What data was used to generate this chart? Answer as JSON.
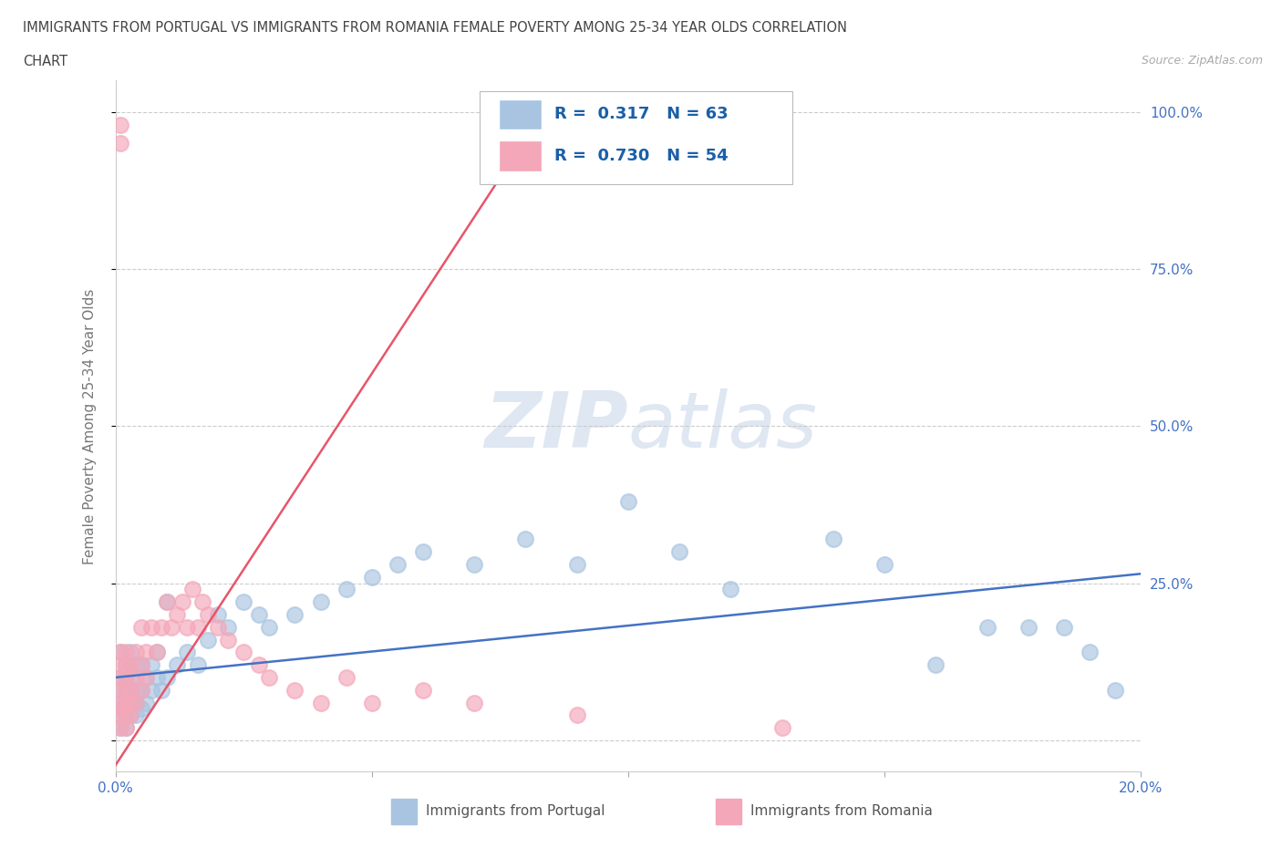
{
  "title_line1": "IMMIGRANTS FROM PORTUGAL VS IMMIGRANTS FROM ROMANIA FEMALE POVERTY AMONG 25-34 YEAR OLDS CORRELATION",
  "title_line2": "CHART",
  "source": "Source: ZipAtlas.com",
  "ylabel": "Female Poverty Among 25-34 Year Olds",
  "color_portugal": "#a8c4e0",
  "color_romania": "#f4a7b9",
  "trendline_portugal": "#4472c4",
  "trendline_romania": "#e8556a",
  "R_portugal": 0.317,
  "N_portugal": 63,
  "R_romania": 0.73,
  "N_romania": 54,
  "xlim": [
    0.0,
    0.2
  ],
  "ylim": [
    -0.05,
    1.05
  ],
  "xtick_positions": [
    0.0,
    0.05,
    0.1,
    0.15,
    0.2
  ],
  "ytick_positions": [
    0.0,
    0.25,
    0.5,
    0.75,
    1.0
  ],
  "portugal_x": [
    0.001,
    0.001,
    0.001,
    0.001,
    0.001,
    0.001,
    0.002,
    0.002,
    0.002,
    0.002,
    0.002,
    0.002,
    0.002,
    0.003,
    0.003,
    0.003,
    0.003,
    0.003,
    0.004,
    0.004,
    0.004,
    0.004,
    0.005,
    0.005,
    0.005,
    0.006,
    0.006,
    0.007,
    0.007,
    0.008,
    0.008,
    0.009,
    0.01,
    0.01,
    0.012,
    0.014,
    0.016,
    0.018,
    0.02,
    0.022,
    0.025,
    0.028,
    0.03,
    0.035,
    0.04,
    0.045,
    0.05,
    0.055,
    0.06,
    0.07,
    0.08,
    0.09,
    0.1,
    0.11,
    0.12,
    0.14,
    0.15,
    0.16,
    0.17,
    0.178,
    0.185,
    0.19,
    0.195
  ],
  "portugal_y": [
    0.02,
    0.04,
    0.06,
    0.08,
    0.1,
    0.14,
    0.02,
    0.04,
    0.06,
    0.07,
    0.08,
    0.1,
    0.12,
    0.04,
    0.06,
    0.08,
    0.1,
    0.14,
    0.04,
    0.06,
    0.08,
    0.12,
    0.05,
    0.08,
    0.12,
    0.06,
    0.1,
    0.08,
    0.12,
    0.1,
    0.14,
    0.08,
    0.1,
    0.22,
    0.12,
    0.14,
    0.12,
    0.16,
    0.2,
    0.18,
    0.22,
    0.2,
    0.18,
    0.2,
    0.22,
    0.24,
    0.26,
    0.28,
    0.3,
    0.28,
    0.32,
    0.28,
    0.38,
    0.3,
    0.24,
    0.32,
    0.28,
    0.12,
    0.18,
    0.18,
    0.18,
    0.14,
    0.08
  ],
  "romania_x": [
    0.001,
    0.001,
    0.001,
    0.001,
    0.001,
    0.001,
    0.001,
    0.001,
    0.001,
    0.001,
    0.002,
    0.002,
    0.002,
    0.002,
    0.002,
    0.002,
    0.002,
    0.003,
    0.003,
    0.003,
    0.003,
    0.004,
    0.004,
    0.004,
    0.005,
    0.005,
    0.005,
    0.006,
    0.006,
    0.007,
    0.008,
    0.009,
    0.01,
    0.011,
    0.012,
    0.013,
    0.014,
    0.015,
    0.016,
    0.017,
    0.018,
    0.02,
    0.022,
    0.025,
    0.028,
    0.03,
    0.035,
    0.04,
    0.045,
    0.05,
    0.06,
    0.07,
    0.09,
    0.13
  ],
  "romania_y": [
    0.02,
    0.04,
    0.05,
    0.06,
    0.08,
    0.1,
    0.12,
    0.14,
    0.95,
    0.98,
    0.02,
    0.04,
    0.06,
    0.08,
    0.1,
    0.12,
    0.14,
    0.04,
    0.06,
    0.08,
    0.12,
    0.06,
    0.1,
    0.14,
    0.08,
    0.12,
    0.18,
    0.1,
    0.14,
    0.18,
    0.14,
    0.18,
    0.22,
    0.18,
    0.2,
    0.22,
    0.18,
    0.24,
    0.18,
    0.22,
    0.2,
    0.18,
    0.16,
    0.14,
    0.12,
    0.1,
    0.08,
    0.06,
    0.1,
    0.06,
    0.08,
    0.06,
    0.04,
    0.02
  ],
  "trendline_p_x0": 0.0,
  "trendline_p_y0": 0.1,
  "trendline_p_x1": 0.2,
  "trendline_p_y1": 0.265,
  "trendline_r_x0": 0.0,
  "trendline_r_y0": -0.04,
  "trendline_r_x1": 0.085,
  "trendline_r_y1": 1.02
}
